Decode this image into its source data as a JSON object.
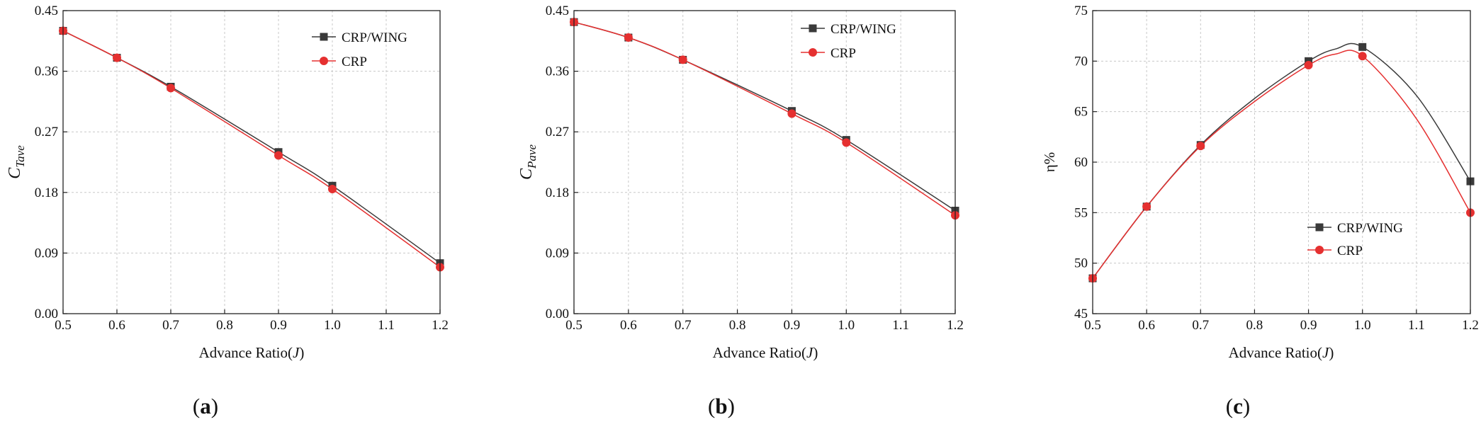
{
  "chart_data": [
    {
      "type": "line",
      "panel": "a",
      "caption": "(a)",
      "caption_letter": "a",
      "xlabel_main": "Advance Ratio(",
      "xlabel_var": "J",
      "xlabel_close": ")",
      "ylabel_main": "C",
      "ylabel_sub": "Tave",
      "xlim": [
        0.5,
        1.2
      ],
      "ylim": [
        0.0,
        0.45
      ],
      "xticks": [
        "0.5",
        "0.6",
        "0.7",
        "0.8",
        "0.9",
        "1.0",
        "1.1",
        "1.2"
      ],
      "yticks": [
        "0.00",
        "0.09",
        "0.18",
        "0.27",
        "0.36",
        "0.45"
      ],
      "legend_position": "top-right",
      "grid": true,
      "series": [
        {
          "name": "CRP/WING",
          "marker": "square",
          "color": "#3a3a3a",
          "x": [
            0.5,
            0.6,
            0.7,
            0.9,
            1.0,
            1.2
          ],
          "y": [
            0.42,
            0.38,
            0.337,
            0.24,
            0.19,
            0.075
          ]
        },
        {
          "name": "CRP",
          "marker": "circle",
          "color": "#e53030",
          "x": [
            0.5,
            0.6,
            0.7,
            0.9,
            1.0,
            1.2
          ],
          "y": [
            0.42,
            0.38,
            0.335,
            0.235,
            0.185,
            0.069
          ]
        }
      ]
    },
    {
      "type": "line",
      "panel": "b",
      "caption": "(b)",
      "caption_letter": "b",
      "xlabel_main": "Advance Ratio(",
      "xlabel_var": "J",
      "xlabel_close": ")",
      "ylabel_main": "C",
      "ylabel_sub": "Pave",
      "xlim": [
        0.5,
        1.2
      ],
      "ylim": [
        0.0,
        0.45
      ],
      "xticks": [
        "0.5",
        "0.6",
        "0.7",
        "0.8",
        "0.9",
        "1.0",
        "1.1",
        "1.2"
      ],
      "yticks": [
        "0.00",
        "0.09",
        "0.18",
        "0.27",
        "0.36",
        "0.45"
      ],
      "legend_position": "top-right",
      "grid": true,
      "series": [
        {
          "name": "CRP/WING",
          "marker": "square",
          "color": "#3a3a3a",
          "x": [
            0.5,
            0.6,
            0.7,
            0.9,
            1.0,
            1.2
          ],
          "y": [
            0.433,
            0.41,
            0.377,
            0.301,
            0.258,
            0.153
          ]
        },
        {
          "name": "CRP",
          "marker": "circle",
          "color": "#e53030",
          "x": [
            0.5,
            0.6,
            0.7,
            0.9,
            1.0,
            1.2
          ],
          "y": [
            0.433,
            0.41,
            0.377,
            0.297,
            0.254,
            0.146
          ]
        }
      ]
    },
    {
      "type": "line",
      "panel": "c",
      "caption": "(c)",
      "caption_letter": "c",
      "xlabel_main": "Advance Ratio(",
      "xlabel_var": "J",
      "xlabel_close": ")",
      "ylabel_main": "η%",
      "ylabel_sub": "",
      "xlim": [
        0.5,
        1.2
      ],
      "ylim": [
        45,
        75
      ],
      "xticks": [
        "0.5",
        "0.6",
        "0.7",
        "0.8",
        "0.9",
        "1.0",
        "1.1",
        "1.2"
      ],
      "yticks": [
        "45",
        "50",
        "55",
        "60",
        "65",
        "70",
        "75"
      ],
      "legend_position": "lower-right",
      "grid": true,
      "series": [
        {
          "name": "CRP/WING",
          "marker": "square",
          "color": "#3a3a3a",
          "x": [
            0.5,
            0.6,
            0.7,
            0.9,
            1.0,
            1.2
          ],
          "y": [
            48.5,
            55.6,
            61.7,
            70.0,
            71.4,
            58.1
          ],
          "curve": [
            [
              0.8,
              66.3
            ],
            [
              0.95,
              71.2
            ],
            [
              1.1,
              66.6
            ]
          ]
        },
        {
          "name": "CRP",
          "marker": "circle",
          "color": "#e53030",
          "x": [
            0.5,
            0.6,
            0.7,
            0.9,
            1.0,
            1.2
          ],
          "y": [
            48.5,
            55.6,
            61.6,
            69.6,
            70.5,
            55.0
          ],
          "curve": [
            [
              0.8,
              66.0
            ],
            [
              0.95,
              70.7
            ],
            [
              1.1,
              64.3
            ]
          ]
        }
      ]
    }
  ]
}
